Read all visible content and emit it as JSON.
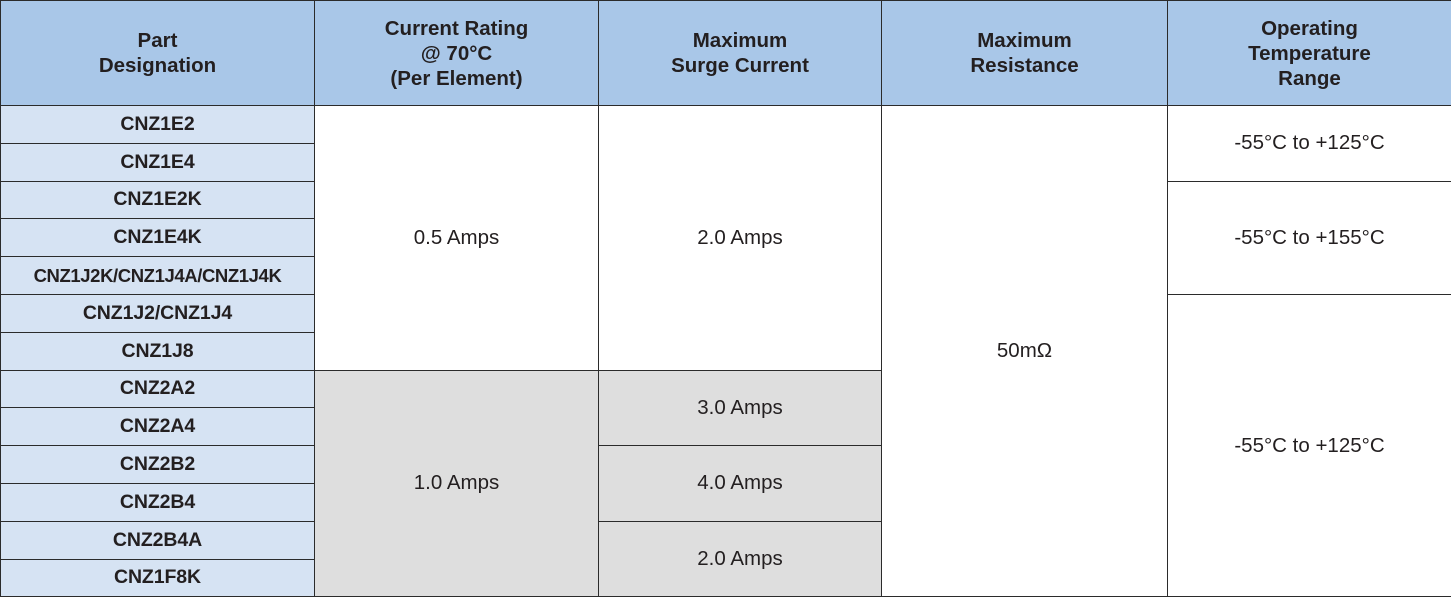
{
  "table": {
    "headers": [
      [
        "Part",
        "Designation"
      ],
      [
        "Current Rating",
        "@ 70°C",
        "(Per Element)"
      ],
      [
        "Maximum",
        "Surge Current"
      ],
      [
        "Maximum",
        "Resistance"
      ],
      [
        "Operating",
        "Temperature",
        "Range"
      ]
    ],
    "parts": [
      "CNZ1E2",
      "CNZ1E4",
      "CNZ1E2K",
      "CNZ1E4K",
      "CNZ1J2K/CNZ1J4A/CNZ1J4K",
      "CNZ1J2/CNZ1J4",
      "CNZ1J8",
      "CNZ2A2",
      "CNZ2A4",
      "CNZ2B2",
      "CNZ2B4",
      "CNZ2B4A",
      "CNZ1F8K"
    ],
    "current_rating": [
      "0.5 Amps",
      "1.0 Amps"
    ],
    "surge_current": [
      "2.0 Amps",
      "3.0 Amps",
      "4.0 Amps",
      "2.0 Amps"
    ],
    "resistance": "50mΩ",
    "temperature_range": [
      "-55°C to +125°C",
      "-55°C to +155°C",
      "-55°C to +125°C"
    ],
    "colors": {
      "header_bg": "#a9c7e8",
      "part_bg": "#d6e3f3",
      "shaded_bg": "#dedede",
      "border": "#2b2b2b"
    }
  }
}
